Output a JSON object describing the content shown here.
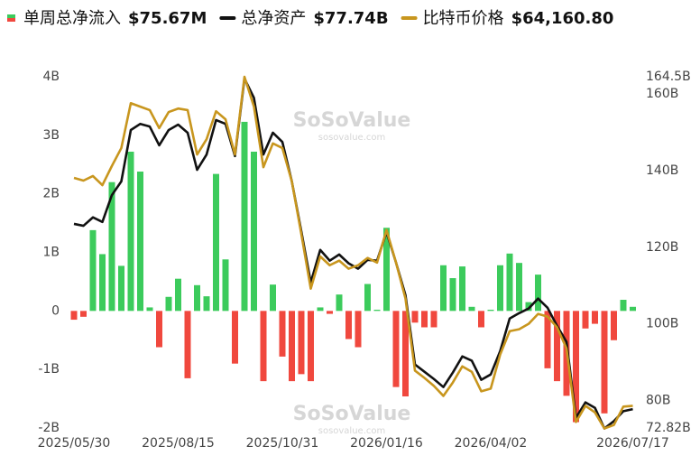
{
  "chart_data": {
    "type": "bar",
    "watermark": [
      "SoSoValue",
      "sosovalue.com"
    ],
    "categories": [
      "2025/05/30",
      null,
      null,
      null,
      null,
      null,
      null,
      null,
      null,
      null,
      null,
      "2025/08/15",
      null,
      null,
      null,
      null,
      null,
      null,
      null,
      null,
      null,
      null,
      "2025/10/31",
      null,
      null,
      null,
      null,
      null,
      null,
      null,
      null,
      null,
      null,
      "2026/01/16",
      null,
      null,
      null,
      null,
      null,
      null,
      null,
      null,
      null,
      null,
      "2026/04/02",
      null,
      null,
      null,
      null,
      null,
      null,
      null,
      null,
      null,
      null,
      null,
      null,
      null,
      null,
      "2026/07/17"
    ],
    "ylim": [
      -2,
      4
    ],
    "yticks": [
      {
        "value": 4,
        "label": "4B"
      },
      {
        "value": 3,
        "label": "3B"
      },
      {
        "value": 2,
        "label": "2B"
      },
      {
        "value": 1,
        "label": "1B"
      },
      0,
      {
        "value": -1,
        "label": "-1B"
      },
      {
        "value": -2,
        "label": "-2B"
      }
    ],
    "y2lim": [
      72.82,
      164.5
    ],
    "y2ticks": [
      {
        "value": 164.5,
        "label": "164.5B"
      },
      {
        "value": 160,
        "label": "160B"
      },
      {
        "value": 140,
        "label": "140B"
      },
      {
        "value": 120,
        "label": "120B"
      },
      {
        "value": 100,
        "label": "100B"
      },
      {
        "value": 80,
        "label": "80B"
      },
      {
        "value": 72.82,
        "label": "72.82B"
      }
    ],
    "grid": false,
    "series": [
      {
        "name": "单周总净流入",
        "summary": "$75.67M",
        "type": "bar",
        "color": "#3ccb5c",
        "negative_color": "#f0483e",
        "values": [
          -0.15,
          -0.1,
          1.38,
          0.97,
          2.2,
          0.77,
          2.72,
          2.38,
          0.06,
          -0.62,
          0.24,
          0.55,
          -1.15,
          0.44,
          0.25,
          2.34,
          0.88,
          -0.9,
          3.23,
          2.72,
          -1.2,
          0.45,
          -0.78,
          -1.2,
          -1.08,
          -1.2,
          0.06,
          -0.05,
          0.28,
          -0.48,
          -0.62,
          0.46,
          0.02,
          1.42,
          -1.3,
          -1.46,
          -0.2,
          -0.28,
          -0.28,
          0.78,
          0.56,
          0.76,
          0.07,
          -0.28,
          0.02,
          0.78,
          0.98,
          0.82,
          0.15,
          0.62,
          -0.98,
          -1.2,
          -1.45,
          -1.9,
          -0.3,
          -0.22,
          -1.75,
          -0.5,
          0.19,
          0.07
        ]
      },
      {
        "name": "总净资产",
        "summary": "$77.74B",
        "type": "line",
        "axis": "y2",
        "color": "#111111",
        "values": [
          126.1,
          125.6,
          127.8,
          126.6,
          133.6,
          137.2,
          150.6,
          152.2,
          151.5,
          146.6,
          150.6,
          152,
          149.9,
          140.2,
          144.2,
          153.2,
          152.2,
          143.8,
          164,
          159,
          144.2,
          149.9,
          147.5,
          137.2,
          124.2,
          110.8,
          119.3,
          116.5,
          118.1,
          115.8,
          114.4,
          116.7,
          116.5,
          124,
          116,
          107.5,
          89.4,
          87.5,
          85.6,
          83.5,
          87.3,
          91.5,
          90.4,
          85.4,
          86.8,
          92.9,
          101.4,
          102.8,
          104,
          106.6,
          104.2,
          99.5,
          95.3,
          75.5,
          79.5,
          78.1,
          72.7,
          74.6,
          77.2,
          77.74
        ]
      },
      {
        "name": "比特币价格",
        "summary": "$64,160.80",
        "type": "line",
        "axis": "y2",
        "color": "#c8961e",
        "values": [
          138.1,
          137.4,
          138.6,
          136.2,
          141.2,
          145.9,
          157.6,
          156.7,
          155.8,
          151.1,
          155.3,
          156.2,
          155.8,
          144.2,
          148.2,
          155.5,
          153.4,
          144.2,
          164.5,
          156.7,
          140.9,
          147.1,
          145.9,
          137.2,
          123.5,
          109.2,
          117.6,
          115.3,
          116.5,
          114.4,
          115.3,
          117.2,
          116,
          124.5,
          116,
          106.6,
          87.8,
          85.9,
          83.8,
          81.2,
          84.7,
          88.9,
          87.5,
          82.4,
          83.1,
          92,
          98.1,
          98.6,
          100,
          102.6,
          101.9,
          99.1,
          93.6,
          74.4,
          78.6,
          76.9,
          72.7,
          73.6,
          78.4,
          78.6
        ]
      }
    ]
  }
}
